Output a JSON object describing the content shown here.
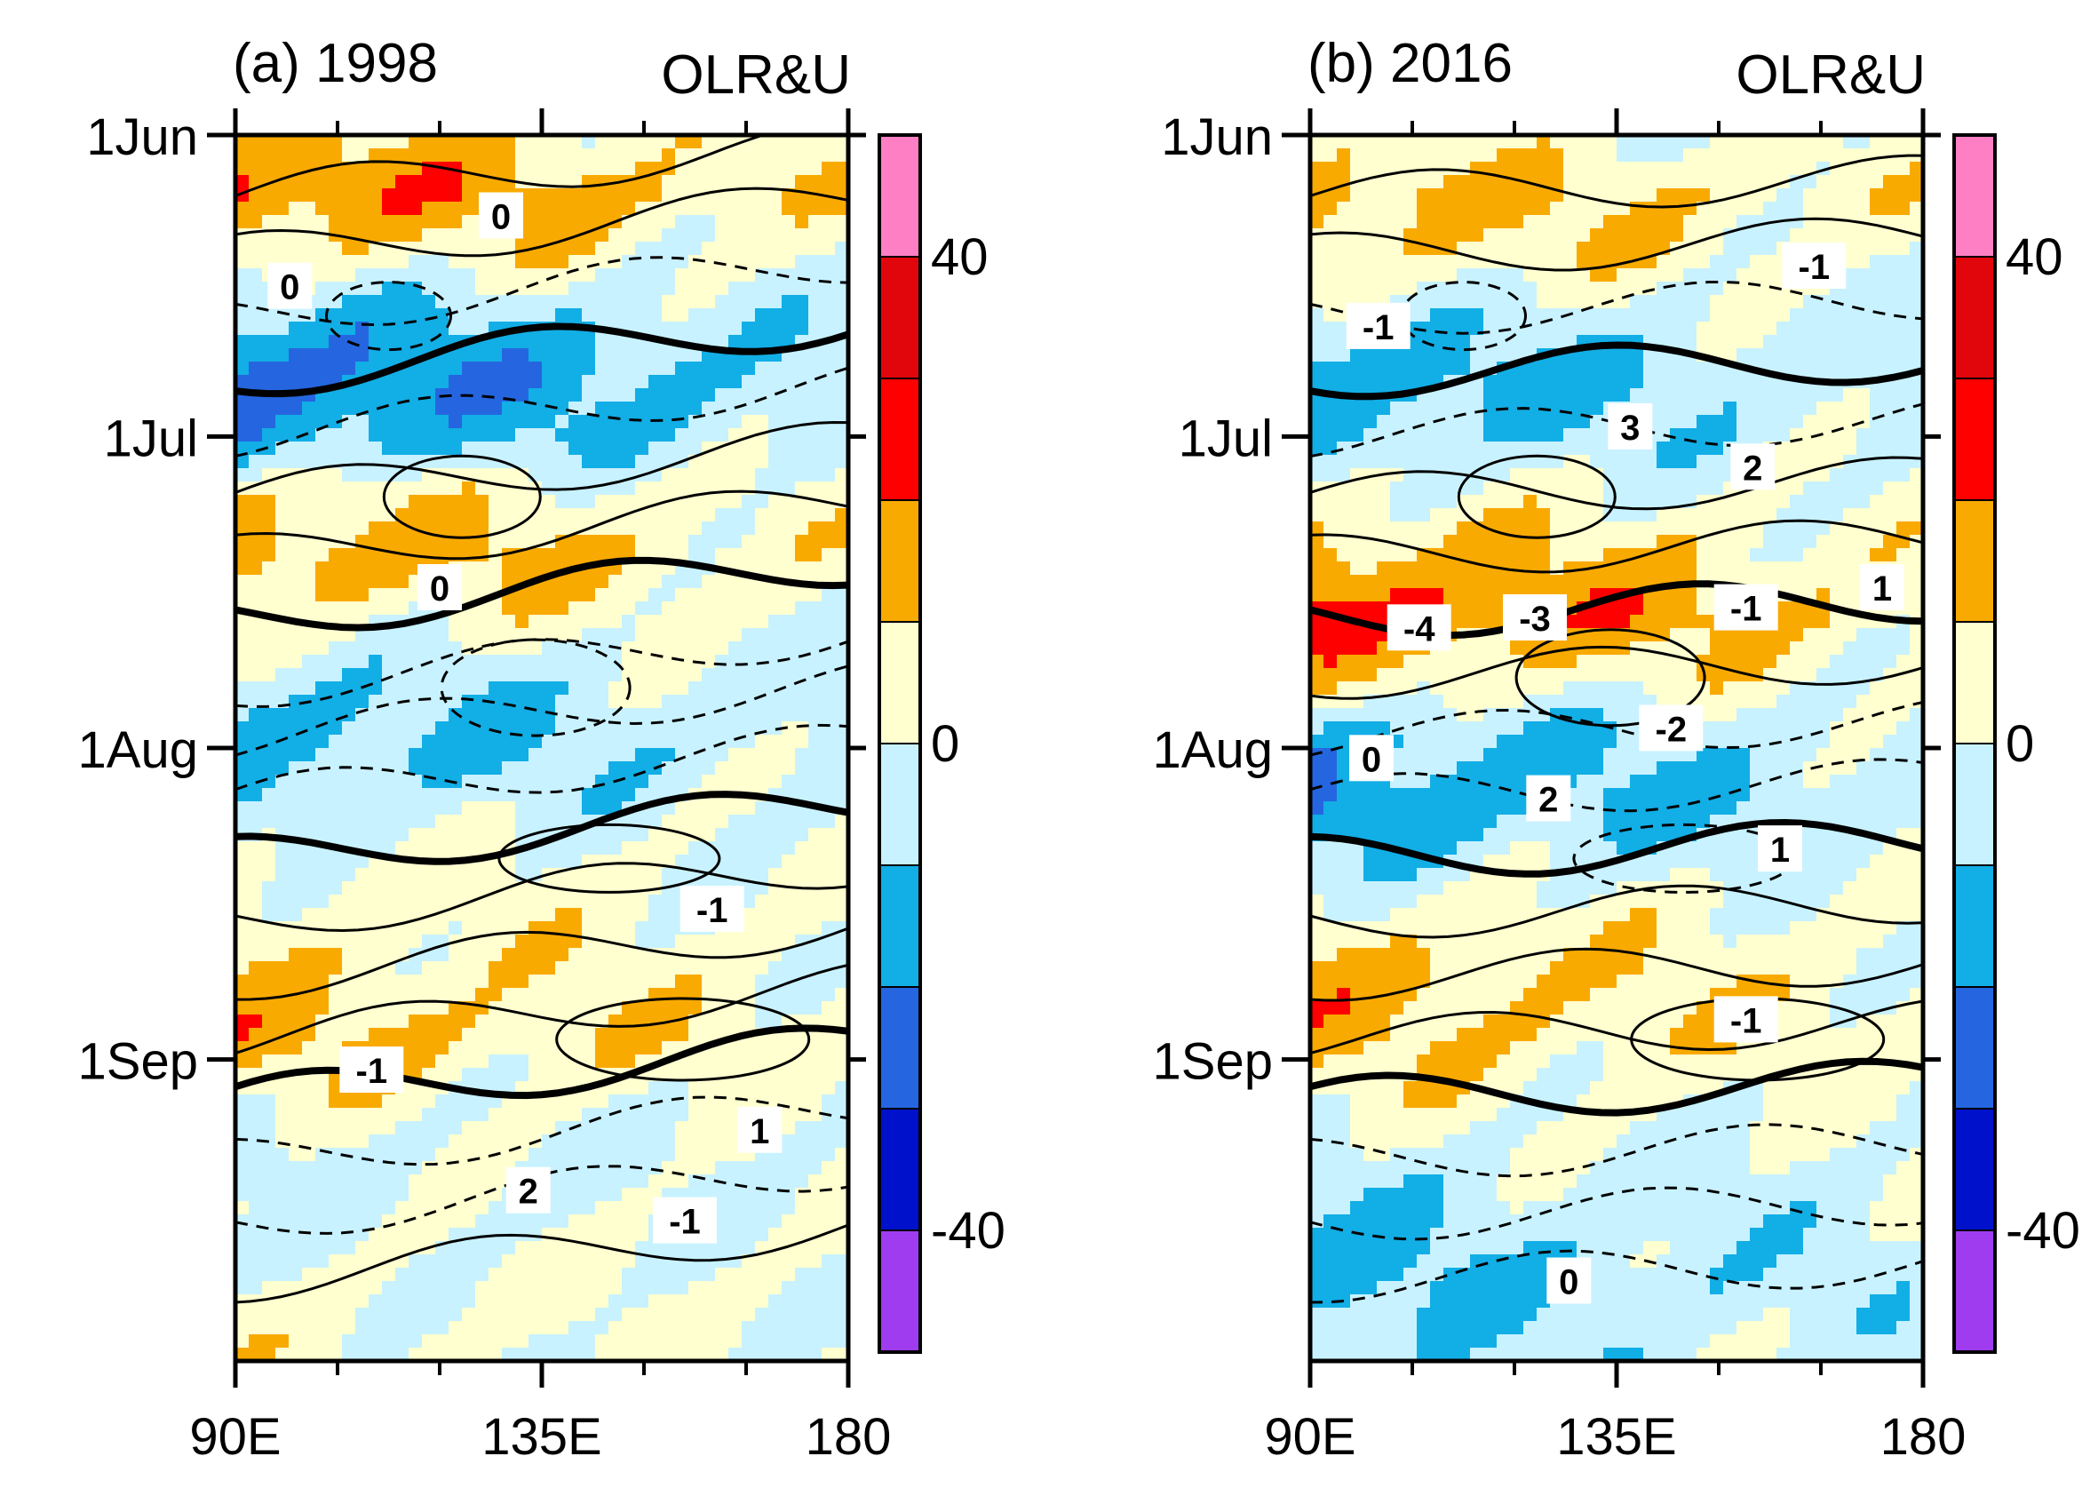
{
  "chart_data": {
    "type": "heatmap",
    "description_kind": "Hovmoller diagram (longitude-time) with shaded OLR anomalies and U contours",
    "colorbar": {
      "levels": [
        -50,
        -40,
        -30,
        -20,
        -10,
        0,
        10,
        20,
        30,
        40,
        50
      ],
      "tick_labels": [
        "40",
        "0",
        "-40"
      ],
      "tick_values": [
        40,
        0,
        -40
      ],
      "colors": [
        "#9f3cf0",
        "#0011cc",
        "#2566e0",
        "#12aee6",
        "#c8f2ff",
        "#ffffd0",
        "#f9aa00",
        "#ff0000",
        "#e1060b",
        "#ff7fc4"
      ]
    },
    "x_axis": {
      "range": [
        90,
        180
      ],
      "tick_values": [
        90,
        135,
        180
      ],
      "tick_labels": [
        "90E",
        "135E",
        "180"
      ],
      "minor_ticks": [
        105,
        120,
        150,
        165
      ]
    },
    "y_axis": {
      "range_days": [
        0,
        122
      ],
      "tick_days": [
        0,
        30,
        61,
        92
      ],
      "tick_labels": [
        "1Jun",
        "1Jul",
        "1Aug",
        "1Sep"
      ],
      "direction": "time increases downward"
    },
    "panels": [
      {
        "id": "a",
        "title": "(a) 1998",
        "right_title": "OLR&U",
        "olr_bands": [
          {
            "day": 0,
            "value": 12
          },
          {
            "day": 6,
            "value": 22
          },
          {
            "day": 12,
            "value": 8
          },
          {
            "day": 18,
            "value": -14
          },
          {
            "day": 24,
            "value": -26
          },
          {
            "day": 30,
            "value": -18
          },
          {
            "day": 36,
            "value": 8
          },
          {
            "day": 42,
            "value": 18
          },
          {
            "day": 48,
            "value": 6
          },
          {
            "day": 55,
            "value": -10
          },
          {
            "day": 60,
            "value": -16
          },
          {
            "day": 66,
            "value": -8
          },
          {
            "day": 72,
            "value": 2
          },
          {
            "day": 78,
            "value": 6
          },
          {
            "day": 84,
            "value": 10
          },
          {
            "day": 90,
            "value": 14
          },
          {
            "day": 96,
            "value": 4
          },
          {
            "day": 102,
            "value": -4
          },
          {
            "day": 108,
            "value": -2
          },
          {
            "day": 114,
            "value": 2
          },
          {
            "day": 122,
            "value": 3
          }
        ],
        "u_contour_labels": [
          {
            "text": "0",
            "lon": 129,
            "day": 8
          },
          {
            "text": "0",
            "lon": 98,
            "day": 15
          },
          {
            "text": "0",
            "lon": 120,
            "day": 45
          },
          {
            "text": "-1",
            "lon": 160,
            "day": 77
          },
          {
            "text": "-1",
            "lon": 110,
            "day": 93
          },
          {
            "text": "1",
            "lon": 167,
            "day": 99
          },
          {
            "text": "2",
            "lon": 133,
            "day": 105
          },
          {
            "text": "-1",
            "lon": 156,
            "day": 108
          }
        ]
      },
      {
        "id": "b",
        "title": "(b) 2016",
        "right_title": "OLR&U",
        "olr_bands": [
          {
            "day": 0,
            "value": 4
          },
          {
            "day": 6,
            "value": 16
          },
          {
            "day": 12,
            "value": 10
          },
          {
            "day": 18,
            "value": -6
          },
          {
            "day": 24,
            "value": -18
          },
          {
            "day": 30,
            "value": -12
          },
          {
            "day": 36,
            "value": 2
          },
          {
            "day": 42,
            "value": 16
          },
          {
            "day": 48,
            "value": 26
          },
          {
            "day": 54,
            "value": 8
          },
          {
            "day": 60,
            "value": -14
          },
          {
            "day": 66,
            "value": -20
          },
          {
            "day": 72,
            "value": -8
          },
          {
            "day": 78,
            "value": 6
          },
          {
            "day": 84,
            "value": 14
          },
          {
            "day": 90,
            "value": 12
          },
          {
            "day": 96,
            "value": 4
          },
          {
            "day": 102,
            "value": -4
          },
          {
            "day": 108,
            "value": -10
          },
          {
            "day": 114,
            "value": -14
          },
          {
            "day": 122,
            "value": -8
          }
        ],
        "u_contour_labels": [
          {
            "text": "-1",
            "lon": 164,
            "day": 13
          },
          {
            "text": "-1",
            "lon": 100,
            "day": 19
          },
          {
            "text": "3",
            "lon": 137,
            "day": 29
          },
          {
            "text": "2",
            "lon": 155,
            "day": 33
          },
          {
            "text": "1",
            "lon": 174,
            "day": 45
          },
          {
            "text": "-4",
            "lon": 106,
            "day": 49
          },
          {
            "text": "-3",
            "lon": 123,
            "day": 48
          },
          {
            "text": "-1",
            "lon": 154,
            "day": 47
          },
          {
            "text": "-2",
            "lon": 143,
            "day": 59
          },
          {
            "text": "0",
            "lon": 99,
            "day": 62
          },
          {
            "text": "2",
            "lon": 125,
            "day": 66
          },
          {
            "text": "1",
            "lon": 159,
            "day": 71
          },
          {
            "text": "-1",
            "lon": 154,
            "day": 88
          },
          {
            "text": "0",
            "lon": 128,
            "day": 114
          }
        ]
      }
    ]
  }
}
